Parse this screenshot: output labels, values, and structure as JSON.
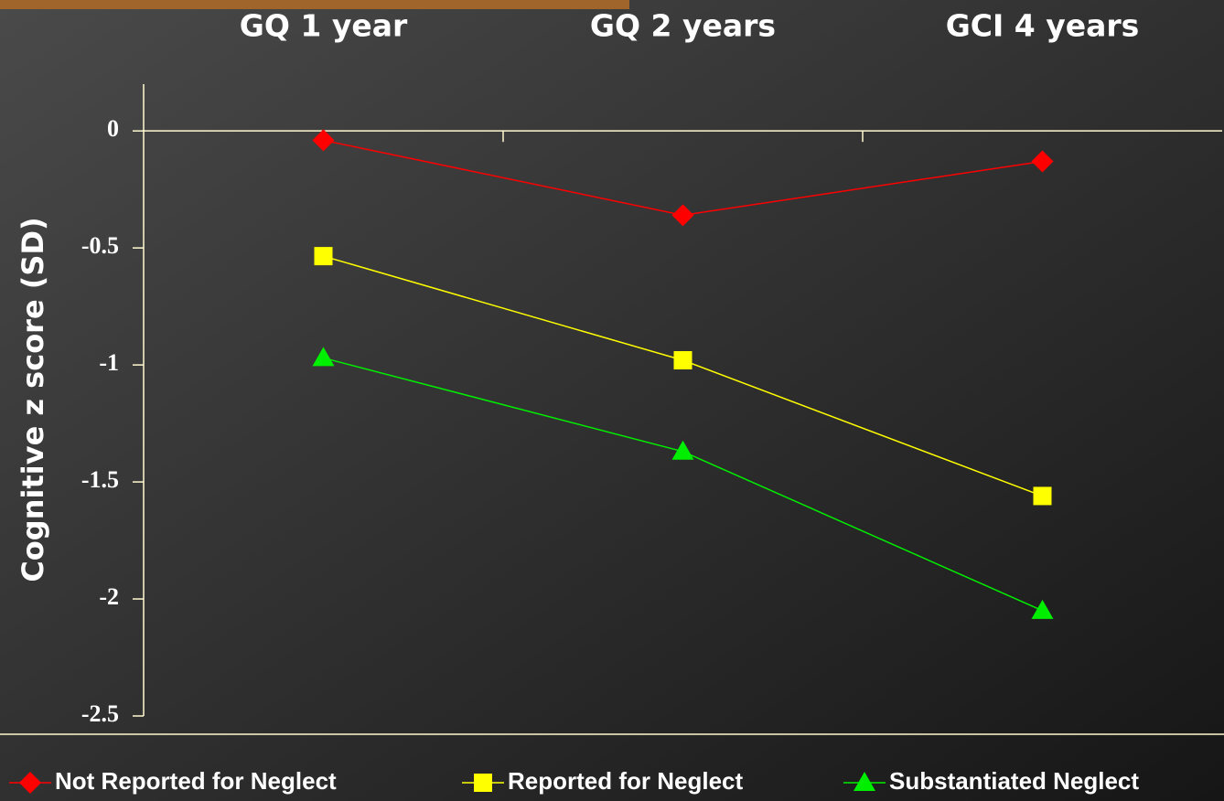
{
  "chart_data": {
    "type": "line",
    "y_label": "Cognitive z score (SD)",
    "categories": [
      "GQ 1 year",
      "GQ 2 years",
      "GCI 4 years"
    ],
    "series": [
      {
        "name": "Not Reported for Neglect",
        "color": "#ff0000",
        "marker": "diamond",
        "values": [
          -0.04,
          -0.36,
          -0.13
        ]
      },
      {
        "name": "Reported for Neglect",
        "color": "#ffff00",
        "marker": "square",
        "values": [
          -0.535,
          -0.98,
          -1.56
        ]
      },
      {
        "name": "Substantiated Neglect",
        "color": "#00ee00",
        "marker": "triangle",
        "values": [
          -0.97,
          -1.37,
          -2.05
        ]
      }
    ],
    "ylim": [
      -2.5,
      0.2
    ],
    "yticks": [
      0,
      -0.5,
      -1,
      -1.5,
      -2,
      -2.5
    ],
    "legend": "bottom"
  }
}
